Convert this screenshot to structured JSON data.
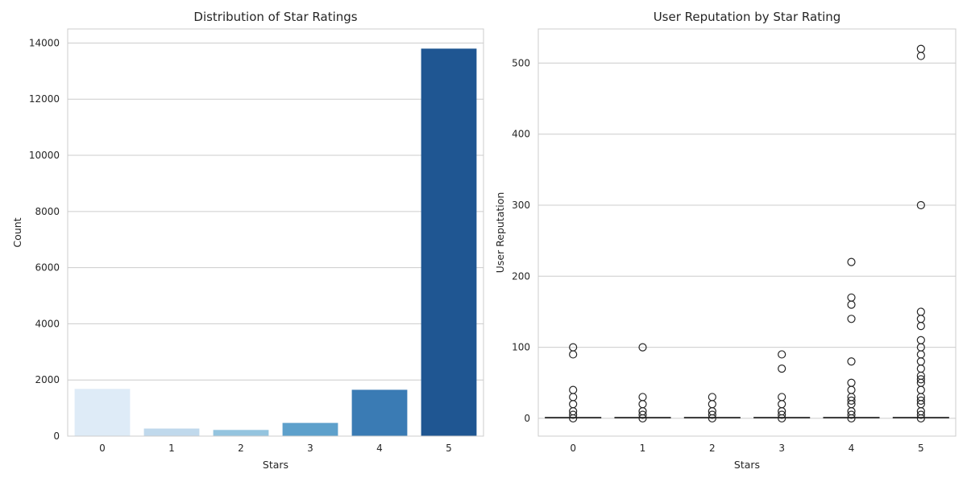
{
  "chart_data": [
    {
      "type": "bar",
      "title": "Distribution of Star Ratings",
      "xlabel": "Stars",
      "ylabel": "Count",
      "categories": [
        "0",
        "1",
        "2",
        "3",
        "4",
        "5"
      ],
      "values": [
        1680,
        270,
        220,
        470,
        1650,
        13800
      ],
      "ylim": [
        0,
        14500
      ],
      "yticks": [
        0,
        2000,
        4000,
        6000,
        8000,
        10000,
        12000,
        14000
      ],
      "grid": true,
      "colors": [
        "#deebf7",
        "#c0d9ec",
        "#94c4df",
        "#5da0cb",
        "#3a7bb4",
        "#1f5692"
      ]
    },
    {
      "type": "box",
      "title": "User Reputation by Star Rating",
      "xlabel": "Stars",
      "ylabel": "User Reputation",
      "categories": [
        "0",
        "1",
        "2",
        "3",
        "4",
        "5"
      ],
      "ylim": [
        -25,
        548
      ],
      "yticks": [
        0,
        100,
        200,
        300,
        400,
        500
      ],
      "grid": true,
      "box_color": "#1f5692",
      "series": [
        {
          "median": 1,
          "q1": 1,
          "q3": 1,
          "whisker_low": 1,
          "whisker_high": 1,
          "outliers": [
            0,
            5,
            10,
            20,
            30,
            40,
            90,
            100
          ]
        },
        {
          "median": 1,
          "q1": 1,
          "q3": 1,
          "whisker_low": 1,
          "whisker_high": 1,
          "outliers": [
            0,
            5,
            10,
            20,
            30,
            100
          ]
        },
        {
          "median": 1,
          "q1": 1,
          "q3": 1,
          "whisker_low": 1,
          "whisker_high": 1,
          "outliers": [
            0,
            5,
            10,
            20,
            30
          ]
        },
        {
          "median": 1,
          "q1": 1,
          "q3": 1,
          "whisker_low": 1,
          "whisker_high": 1,
          "outliers": [
            0,
            5,
            10,
            20,
            30,
            70,
            90
          ]
        },
        {
          "median": 1,
          "q1": 1,
          "q3": 1,
          "whisker_low": 1,
          "whisker_high": 1,
          "outliers": [
            0,
            5,
            10,
            20,
            25,
            30,
            40,
            50,
            80,
            140,
            160,
            170,
            220
          ]
        },
        {
          "median": 1,
          "q1": 1,
          "q3": 1,
          "whisker_low": 1,
          "whisker_high": 1,
          "outliers": [
            0,
            5,
            10,
            20,
            25,
            30,
            40,
            50,
            55,
            60,
            70,
            80,
            90,
            100,
            110,
            130,
            140,
            150,
            300,
            510,
            520
          ]
        }
      ]
    }
  ]
}
